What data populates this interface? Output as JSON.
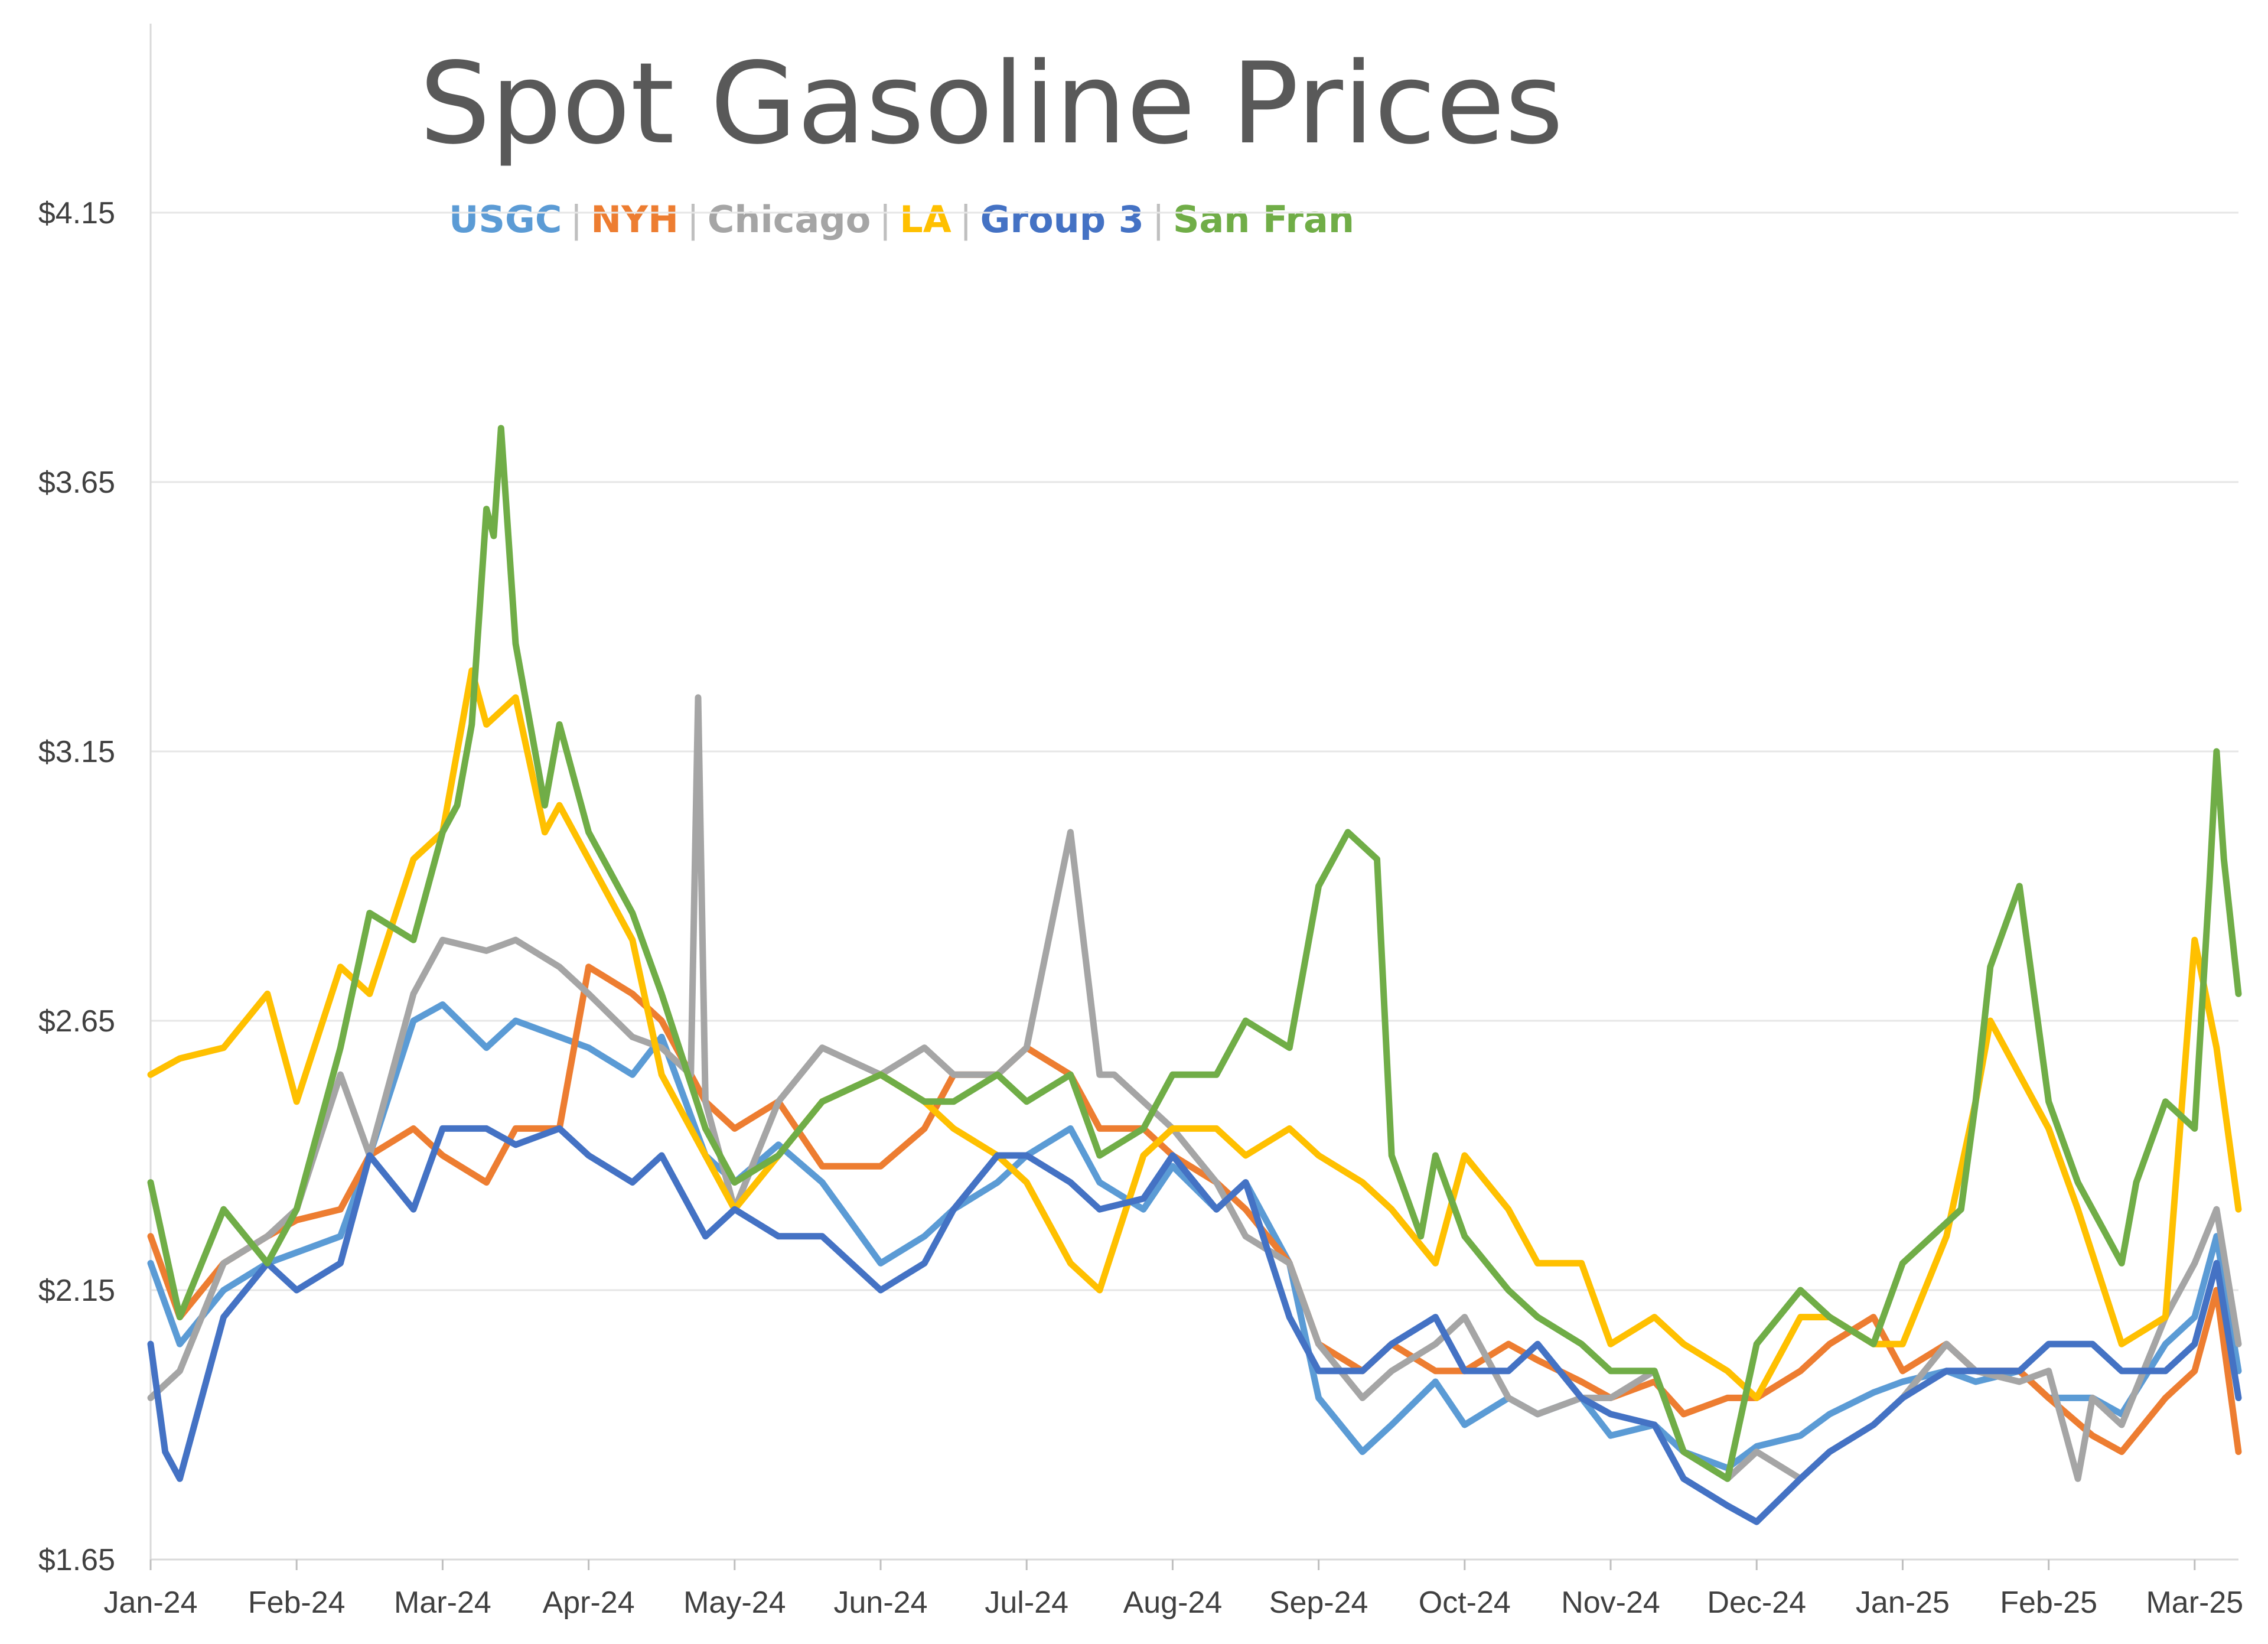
{
  "chart_data": {
    "type": "line",
    "title": "Spot Gasoline Prices",
    "xlabel": "",
    "ylabel": "",
    "ylim": [
      1.65,
      4.15
    ],
    "yticks": [
      "$1.65",
      "$2.15",
      "$2.65",
      "$3.15",
      "$3.65",
      "$4.15"
    ],
    "ytick_values": [
      1.65,
      2.15,
      2.65,
      3.15,
      3.65,
      4.15
    ],
    "categories": [
      "Jan-24",
      "Feb-24",
      "Mar-24",
      "Apr-24",
      "May-24",
      "Jun-24",
      "Jul-24",
      "Aug-24",
      "Sep-24",
      "Oct-24",
      "Nov-24",
      "Dec-24",
      "Jan-25",
      "Feb-25",
      "Mar-25"
    ],
    "x_range": [
      0,
      14.3
    ],
    "grid": true,
    "legend_position": "top",
    "series": [
      {
        "name": "USGC",
        "color": "#5B9BD5",
        "x": [
          0,
          0.2,
          0.5,
          0.8,
          1,
          1.3,
          1.5,
          1.8,
          2,
          2.3,
          2.5,
          2.8,
          3,
          3.3,
          3.5,
          3.8,
          4,
          4.3,
          4.6,
          5,
          5.3,
          5.5,
          5.8,
          6,
          6.3,
          6.5,
          6.8,
          7,
          7.3,
          7.5,
          7.8,
          8,
          8.3,
          8.5,
          8.8,
          9,
          9.3,
          9.5,
          9.8,
          10,
          10.3,
          10.5,
          10.8,
          11,
          11.3,
          11.5,
          11.8,
          12,
          12.3,
          12.5,
          12.8,
          13,
          13.3,
          13.5,
          13.8,
          14,
          14.15,
          14.3
        ],
        "values": [
          2.2,
          2.05,
          2.15,
          2.2,
          2.22,
          2.25,
          2.4,
          2.65,
          2.68,
          2.6,
          2.65,
          2.62,
          2.6,
          2.55,
          2.62,
          2.4,
          2.35,
          2.42,
          2.35,
          2.2,
          2.25,
          2.3,
          2.35,
          2.4,
          2.45,
          2.35,
          2.3,
          2.38,
          2.3,
          2.35,
          2.2,
          1.95,
          1.85,
          1.9,
          1.98,
          1.9,
          1.95,
          1.92,
          1.95,
          1.88,
          1.9,
          1.85,
          1.82,
          1.86,
          1.88,
          1.92,
          1.96,
          1.98,
          2.0,
          1.98,
          2.0,
          1.95,
          1.95,
          1.92,
          2.05,
          2.1,
          2.25,
          2.0
        ]
      },
      {
        "name": "NYH",
        "color": "#ED7D31",
        "x": [
          0,
          0.2,
          0.5,
          0.8,
          1,
          1.3,
          1.5,
          1.8,
          2,
          2.3,
          2.5,
          2.8,
          3,
          3.3,
          3.5,
          3.8,
          4,
          4.3,
          4.6,
          5,
          5.3,
          5.5,
          5.8,
          6,
          6.3,
          6.5,
          6.8,
          7,
          7.3,
          7.5,
          7.8,
          8,
          8.3,
          8.5,
          8.8,
          9,
          9.3,
          9.5,
          9.8,
          10,
          10.3,
          10.5,
          10.8,
          11,
          11.3,
          11.5,
          11.8,
          12,
          12.3,
          12.5,
          12.8,
          13,
          13.3,
          13.5,
          13.8,
          14,
          14.15,
          14.3
        ],
        "values": [
          2.25,
          2.1,
          2.2,
          2.25,
          2.28,
          2.3,
          2.4,
          2.45,
          2.4,
          2.35,
          2.45,
          2.45,
          2.75,
          2.7,
          2.65,
          2.5,
          2.45,
          2.5,
          2.38,
          2.38,
          2.45,
          2.55,
          2.55,
          2.6,
          2.55,
          2.45,
          2.45,
          2.4,
          2.35,
          2.3,
          2.2,
          2.05,
          2.0,
          2.05,
          2.0,
          2.0,
          2.05,
          2.02,
          1.98,
          1.95,
          1.98,
          1.92,
          1.95,
          1.95,
          2.0,
          2.05,
          2.1,
          2.0,
          2.05,
          2.0,
          2.0,
          1.95,
          1.88,
          1.85,
          1.95,
          2.0,
          2.15,
          1.85
        ]
      },
      {
        "name": "Chicago",
        "color": "#A5A5A5",
        "x": [
          0,
          0.2,
          0.5,
          0.8,
          1,
          1.3,
          1.5,
          1.8,
          2,
          2.3,
          2.5,
          2.8,
          3,
          3.3,
          3.5,
          3.7,
          3.75,
          3.8,
          4,
          4.3,
          4.6,
          5,
          5.3,
          5.5,
          5.8,
          6,
          6.3,
          6.5,
          6.6,
          6.8,
          7,
          7.3,
          7.5,
          7.8,
          8,
          8.3,
          8.5,
          8.8,
          9,
          9.3,
          9.5,
          9.8,
          10,
          10.3,
          10.5,
          10.8,
          11,
          11.3,
          11.5,
          11.8,
          12,
          12.3,
          12.5,
          12.8,
          13,
          13.2,
          13.3,
          13.5,
          13.8,
          14,
          14.15,
          14.3
        ],
        "values": [
          1.95,
          2.0,
          2.2,
          2.25,
          2.3,
          2.55,
          2.4,
          2.7,
          2.8,
          2.78,
          2.8,
          2.75,
          2.7,
          2.62,
          2.6,
          2.55,
          3.25,
          2.5,
          2.3,
          2.5,
          2.6,
          2.55,
          2.6,
          2.55,
          2.55,
          2.6,
          3.0,
          2.55,
          2.55,
          2.5,
          2.45,
          2.35,
          2.25,
          2.2,
          2.05,
          1.95,
          2.0,
          2.05,
          2.1,
          1.95,
          1.92,
          1.95,
          1.95,
          2.0,
          1.85,
          1.8,
          1.85,
          1.8,
          1.85,
          1.9,
          1.95,
          2.05,
          2.0,
          1.98,
          2.0,
          1.8,
          1.95,
          1.9,
          2.1,
          2.2,
          2.3,
          2.05
        ]
      },
      {
        "name": "LA",
        "color": "#FFC000",
        "x": [
          0,
          0.2,
          0.5,
          0.8,
          1,
          1.3,
          1.5,
          1.8,
          2,
          2.2,
          2.3,
          2.5,
          2.7,
          2.8,
          3,
          3.3,
          3.5,
          3.8,
          4,
          4.3,
          4.6,
          5,
          5.3,
          5.5,
          5.8,
          6,
          6.3,
          6.5,
          6.8,
          7,
          7.3,
          7.5,
          7.8,
          8,
          8.3,
          8.5,
          8.8,
          9,
          9.3,
          9.5,
          9.8,
          10,
          10.3,
          10.5,
          10.8,
          11,
          11.3,
          11.5,
          11.8,
          12,
          12.3,
          12.5,
          12.6,
          12.8,
          13,
          13.2,
          13.5,
          13.8,
          14,
          14.15,
          14.3
        ],
        "values": [
          2.55,
          2.58,
          2.6,
          2.7,
          2.5,
          2.75,
          2.7,
          2.95,
          3.0,
          3.3,
          3.2,
          3.25,
          3.0,
          3.05,
          2.95,
          2.8,
          2.55,
          2.4,
          2.3,
          2.4,
          2.5,
          2.55,
          2.5,
          2.45,
          2.4,
          2.35,
          2.2,
          2.15,
          2.4,
          2.45,
          2.45,
          2.4,
          2.45,
          2.4,
          2.35,
          2.3,
          2.2,
          2.4,
          2.3,
          2.2,
          2.2,
          2.05,
          2.1,
          2.05,
          2.0,
          1.95,
          2.1,
          2.1,
          2.05,
          2.05,
          2.25,
          2.5,
          2.65,
          2.55,
          2.45,
          2.3,
          2.05,
          2.1,
          2.8,
          2.6,
          2.3
        ]
      },
      {
        "name": "Group 3",
        "color": "#4472C4",
        "x": [
          0,
          0.1,
          0.2,
          0.5,
          0.8,
          1,
          1.3,
          1.5,
          1.8,
          2,
          2.3,
          2.5,
          2.8,
          3,
          3.3,
          3.5,
          3.8,
          4,
          4.3,
          4.6,
          5,
          5.3,
          5.5,
          5.8,
          6,
          6.3,
          6.5,
          6.8,
          7,
          7.3,
          7.5,
          7.8,
          8,
          8.3,
          8.5,
          8.8,
          9,
          9.3,
          9.5,
          9.8,
          10,
          10.3,
          10.5,
          10.8,
          11,
          11.3,
          11.5,
          11.8,
          12,
          12.3,
          12.5,
          12.8,
          13,
          13.3,
          13.5,
          13.8,
          14,
          14.15,
          14.3
        ],
        "values": [
          2.05,
          1.85,
          1.8,
          2.1,
          2.2,
          2.15,
          2.2,
          2.4,
          2.3,
          2.45,
          2.45,
          2.42,
          2.45,
          2.4,
          2.35,
          2.4,
          2.25,
          2.3,
          2.25,
          2.25,
          2.15,
          2.2,
          2.3,
          2.4,
          2.4,
          2.35,
          2.3,
          2.32,
          2.4,
          2.3,
          2.35,
          2.1,
          2.0,
          2.0,
          2.05,
          2.1,
          2.0,
          2.0,
          2.05,
          1.95,
          1.92,
          1.9,
          1.8,
          1.75,
          1.72,
          1.8,
          1.85,
          1.9,
          1.95,
          2.0,
          2.0,
          2.0,
          2.05,
          2.05,
          2.0,
          2.0,
          2.05,
          2.2,
          1.95
        ]
      },
      {
        "name": "San Fran",
        "color": "#70AD47",
        "x": [
          0,
          0.2,
          0.5,
          0.8,
          1,
          1.3,
          1.5,
          1.8,
          2,
          2.1,
          2.2,
          2.3,
          2.35,
          2.4,
          2.5,
          2.7,
          2.8,
          3,
          3.3,
          3.5,
          3.8,
          4,
          4.3,
          4.6,
          5,
          5.3,
          5.5,
          5.8,
          6,
          6.3,
          6.5,
          6.8,
          7,
          7.3,
          7.5,
          7.8,
          8,
          8.2,
          8.4,
          8.5,
          8.7,
          8.8,
          9,
          9.3,
          9.5,
          9.8,
          10,
          10.3,
          10.5,
          10.8,
          11,
          11.3,
          11.5,
          11.8,
          12,
          12.2,
          12.4,
          12.5,
          12.6,
          12.8,
          13,
          13.2,
          13.5,
          13.6,
          13.8,
          14,
          14.1,
          14.15,
          14.2,
          14.3
        ],
        "values": [
          2.35,
          2.1,
          2.3,
          2.2,
          2.3,
          2.6,
          2.85,
          2.8,
          3.0,
          3.05,
          3.2,
          3.6,
          3.55,
          3.75,
          3.35,
          3.05,
          3.2,
          3.0,
          2.85,
          2.7,
          2.45,
          2.35,
          2.4,
          2.5,
          2.55,
          2.5,
          2.5,
          2.55,
          2.5,
          2.55,
          2.4,
          2.45,
          2.55,
          2.55,
          2.65,
          2.6,
          2.9,
          3.0,
          2.95,
          2.4,
          2.25,
          2.4,
          2.25,
          2.15,
          2.1,
          2.05,
          2.0,
          2.0,
          1.85,
          1.8,
          2.05,
          2.15,
          2.1,
          2.05,
          2.2,
          2.25,
          2.3,
          2.5,
          2.75,
          2.9,
          2.5,
          2.35,
          2.2,
          2.35,
          2.5,
          2.45,
          2.9,
          3.15,
          2.95,
          2.7
        ]
      }
    ]
  }
}
